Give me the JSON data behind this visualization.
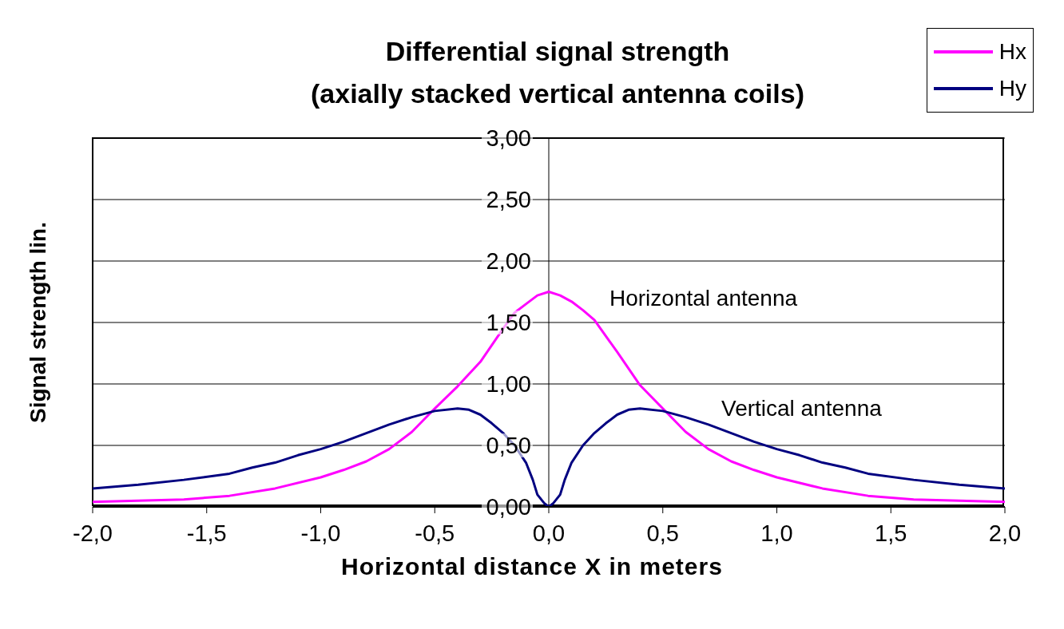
{
  "chart_data": {
    "type": "line",
    "title": "Differential signal strength\n(axially stacked vertical antenna coils)",
    "xlabel": "Horizontal distance X in meters",
    "ylabel": "Signal strength lin.",
    "xlim": [
      -2,
      2
    ],
    "ylim": [
      0,
      3
    ],
    "xticks": [
      {
        "value": -2,
        "label": "-2,0"
      },
      {
        "value": -1.5,
        "label": "-1,5"
      },
      {
        "value": -1,
        "label": "-1,0"
      },
      {
        "value": -0.5,
        "label": "-0,5"
      },
      {
        "value": 0,
        "label": "0,0"
      },
      {
        "value": 0.5,
        "label": "0,5"
      },
      {
        "value": 1,
        "label": "1,0"
      },
      {
        "value": 1.5,
        "label": "1,5"
      },
      {
        "value": 2,
        "label": "2,0"
      }
    ],
    "yticks": [
      {
        "value": 0,
        "label": "0,00"
      },
      {
        "value": 0.5,
        "label": "0,50"
      },
      {
        "value": 1,
        "label": "1,00"
      },
      {
        "value": 1.5,
        "label": "1,50"
      },
      {
        "value": 2,
        "label": "2,00"
      },
      {
        "value": 2.5,
        "label": "2,50"
      },
      {
        "value": 3,
        "label": "3,00"
      }
    ],
    "grid": "y",
    "legend": "top right",
    "marker": "none",
    "annotations": [
      "Horizontal antenna",
      "Vertical antenna"
    ],
    "series": [
      {
        "name": "Hx",
        "color": "#ff00ff",
        "x": [
          -2,
          -1.8,
          -1.6,
          -1.4,
          -1.2,
          -1,
          -0.9,
          -0.8,
          -0.7,
          -0.6,
          -0.5,
          -0.4,
          -0.3,
          -0.2,
          -0.15,
          -0.1,
          -0.05,
          0,
          0.05,
          0.1,
          0.15,
          0.2,
          0.3,
          0.4,
          0.5,
          0.6,
          0.7,
          0.8,
          0.9,
          1,
          1.2,
          1.4,
          1.6,
          1.8,
          2
        ],
        "values": [
          0.04,
          0.05,
          0.06,
          0.09,
          0.15,
          0.24,
          0.3,
          0.37,
          0.47,
          0.61,
          0.8,
          0.98,
          1.18,
          1.45,
          1.58,
          1.65,
          1.72,
          1.75,
          1.72,
          1.67,
          1.6,
          1.52,
          1.26,
          0.99,
          0.8,
          0.61,
          0.47,
          0.37,
          0.3,
          0.24,
          0.15,
          0.09,
          0.06,
          0.05,
          0.04
        ]
      },
      {
        "name": "Hy",
        "color": "#000080",
        "x": [
          -2,
          -1.8,
          -1.6,
          -1.4,
          -1.3,
          -1.2,
          -1.1,
          -1,
          -0.9,
          -0.8,
          -0.7,
          -0.6,
          -0.5,
          -0.4,
          -0.35,
          -0.3,
          -0.25,
          -0.2,
          -0.15,
          -0.1,
          -0.07,
          -0.05,
          -0.02,
          0,
          0.02,
          0.05,
          0.07,
          0.1,
          0.15,
          0.2,
          0.25,
          0.3,
          0.35,
          0.4,
          0.5,
          0.6,
          0.7,
          0.8,
          0.9,
          1,
          1.1,
          1.2,
          1.3,
          1.4,
          1.6,
          1.8,
          2
        ],
        "values": [
          0.15,
          0.18,
          0.22,
          0.27,
          0.32,
          0.36,
          0.42,
          0.47,
          0.53,
          0.6,
          0.67,
          0.73,
          0.78,
          0.8,
          0.79,
          0.75,
          0.68,
          0.6,
          0.5,
          0.36,
          0.22,
          0.1,
          0.03,
          0,
          0.03,
          0.1,
          0.22,
          0.36,
          0.5,
          0.6,
          0.68,
          0.75,
          0.79,
          0.8,
          0.78,
          0.73,
          0.67,
          0.6,
          0.53,
          0.47,
          0.42,
          0.36,
          0.32,
          0.27,
          0.22,
          0.18,
          0.15
        ]
      }
    ]
  }
}
